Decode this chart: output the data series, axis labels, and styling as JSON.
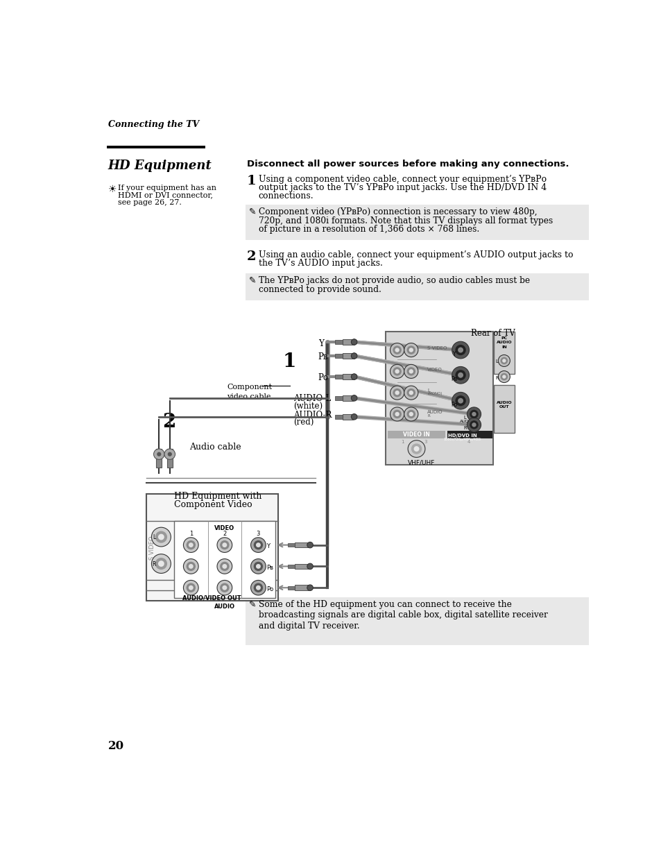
{
  "bg_color": "#ffffff",
  "page_number": "20",
  "header_italic": "Connecting the TV",
  "section_title": "HD Equipment",
  "bold_heading": "Disconnect all power sources before making any connections.",
  "step1_lines": [
    "Using a component video cable, connect your equipment’s YPʙPᴏ",
    "output jacks to the TV’s YPʙPᴏ input jacks. Use the HD/DVD IN 4",
    "connections."
  ],
  "note1_lines": [
    "Component video (YPʙPᴏ) connection is necessary to view 480p,",
    "720p, and 1080i formats. Note that this TV displays all format types",
    "of picture in a resolution of 1,366 dots × 768 lines."
  ],
  "step2_lines": [
    "Using an audio cable, connect your equipment’s AUDIO output jacks to",
    "the TV’s AUDIO input jacks."
  ],
  "note2_lines": [
    "The YPʙPᴏ jacks do not provide audio, so audio cables must be",
    "connected to provide sound."
  ],
  "note3_lines": [
    "Some of the HD equipment you can connect to receive the",
    "broadcasting signals are digital cable box, digital satellite receiver",
    "and digital TV receiver."
  ],
  "tip_text_lines": [
    "If your equipment has an",
    "HDMI or DVI connector,",
    "see page 26, 27."
  ],
  "label_rear_tv": "Rear of TV",
  "label_component_cable": "Component\nvideo cable",
  "label_audio_cable": "Audio cable",
  "label_hd_equip_line1": "HD Equipment with",
  "label_hd_equip_line2": "Component Video",
  "label_Y": "Y",
  "label_PB": "Pʙ",
  "label_PR": "Pᴏ",
  "label_audio_l": "AUDIO-L",
  "label_audio_l2": "(white)",
  "label_audio_r": "AUDIO-R",
  "label_audio_r2": "(red)",
  "label_vhf": "VHF/UHF",
  "note_bg": "#e8e8e8",
  "jack_dark": "#404040",
  "jack_mid": "#909090",
  "jack_light": "#d0d0d0",
  "jack_white": "#f0f0f0",
  "tv_bg": "#d8d8d8",
  "tv_border": "#666666",
  "cable_color": "#aaaaaa",
  "cable_dark": "#555555"
}
